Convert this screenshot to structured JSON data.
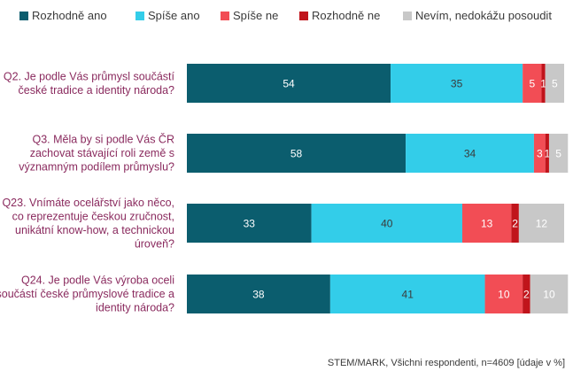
{
  "chart_data": {
    "type": "bar",
    "orientation": "horizontal",
    "stacked": true,
    "percent_stacked": true,
    "categories": [
      [
        "Q2. Je podle Vás průmysl součástí",
        "české tradice a identity národa?"
      ],
      [
        "Q3. Měla by si podle Vás ČR",
        "zachovat stávající roli země s",
        "významným podílem průmyslu?"
      ],
      [
        "Q23. Vnímáte ocelářství jako něco,",
        "co reprezentuje českou zručnost,",
        "unikátní know-how, a technickou",
        "úroveň?"
      ],
      [
        "Q24. Je podle Vás výroba oceli",
        "součástí české průmyslové tradice a",
        "identity národa?"
      ]
    ],
    "series": [
      {
        "name": "Rozhodně ano",
        "color": "#0b5d6e",
        "label_color": "#ffffff",
        "values": [
          54,
          58,
          33,
          38
        ]
      },
      {
        "name": "Spíše ano",
        "color": "#33cde9",
        "label_color": "#3a3a3a",
        "values": [
          35,
          34,
          40,
          41
        ]
      },
      {
        "name": "Spíše ne",
        "color": "#f24d55",
        "label_color": "#ffffff",
        "values": [
          5,
          3,
          13,
          10
        ]
      },
      {
        "name": "Rozhodně ne",
        "color": "#c0141b",
        "label_color": "#ffffff",
        "values": [
          1,
          1,
          2,
          2
        ]
      },
      {
        "name": "Nevím, nedokážu posoudit",
        "color": "#c8c8c8",
        "label_color": "#ffffff",
        "values": [
          5,
          5,
          12,
          10
        ]
      }
    ],
    "legend_position": "top",
    "grid": false,
    "xlim": [
      0,
      100
    ],
    "note": "STEM/MARK, Všichni respondenti, n=4609 [údaje v %]"
  }
}
